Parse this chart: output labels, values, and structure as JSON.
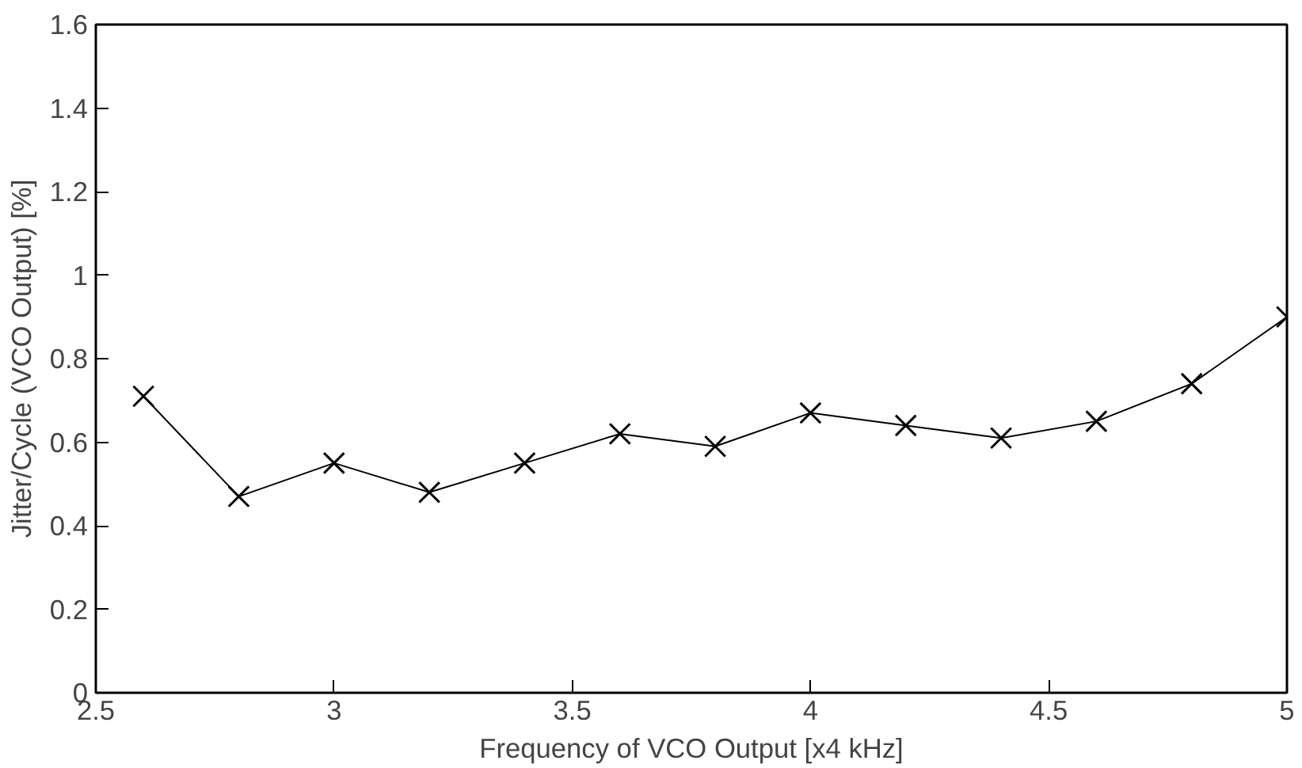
{
  "chart_data": {
    "type": "line",
    "xlabel": "Frequency of VCO Output [x4 kHz]",
    "ylabel": "Jitter/Cycle (VCO Output) [%]",
    "x": [
      2.6,
      2.8,
      3.0,
      3.2,
      3.4,
      3.6,
      3.8,
      4.0,
      4.2,
      4.4,
      4.6,
      4.8,
      5.0
    ],
    "series": [
      {
        "color": "#000000",
        "values": [
          0.71,
          0.47,
          0.55,
          0.48,
          0.55,
          0.62,
          0.59,
          0.67,
          0.64,
          0.61,
          0.65,
          0.74,
          0.9
        ]
      }
    ],
    "xlim": [
      2.5,
      5
    ],
    "xticks": [
      2.5,
      3,
      3.5,
      4,
      4.5,
      5
    ],
    "ylim": [
      0,
      1.6
    ],
    "yticks": [
      0,
      0.2,
      0.4,
      0.6,
      0.8,
      1,
      1.2,
      1.4,
      1.6
    ],
    "marker": "cross",
    "line_style": "solid",
    "grid": false
  }
}
